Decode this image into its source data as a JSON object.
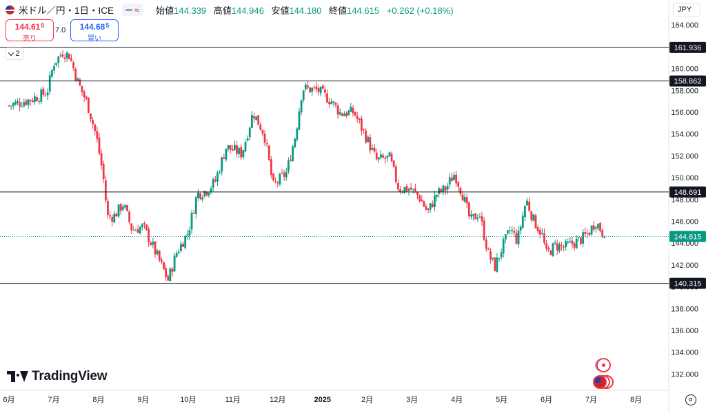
{
  "header": {
    "symbol": "米ドル／円・1日・ICE",
    "open_label": "始値",
    "open_value": "144.339",
    "high_label": "高値",
    "high_value": "144.946",
    "low_label": "安値",
    "low_value": "144.180",
    "close_label": "終値",
    "close_value": "144.615",
    "change": "+0.262 (+0.18%)",
    "pill_icon": "wave-icon"
  },
  "trade": {
    "sell_main": "144.61",
    "sell_sup": "5",
    "sell_label": "売り",
    "spread": "7.0",
    "buy_main": "144.68",
    "buy_sup": "5",
    "buy_label": "買い"
  },
  "indicator_collapse": "2",
  "currency": "JPY",
  "logo_text": "TradingView",
  "colors": {
    "up": "#089981",
    "down": "#f23645",
    "accent": "#2962ff",
    "price_line": "#089981"
  },
  "chart_data": {
    "type": "candlestick",
    "ylim": [
      131.0,
      166.0
    ],
    "y_ticks": [
      132,
      134,
      136,
      138,
      140,
      142,
      144,
      146,
      148,
      150,
      152,
      154,
      156,
      158,
      160,
      162,
      164
    ],
    "y_tick_labels": [
      "132.000",
      "134.000",
      "136.000",
      "138.000",
      "140.000",
      "142.000",
      "144.000",
      "146.000",
      "148.000",
      "150.000",
      "152.000",
      "154.000",
      "156.000",
      "158.000",
      "160.000",
      "162.000",
      "164.000"
    ],
    "x_labels": [
      "6月",
      "7月",
      "8月",
      "9月",
      "10月",
      "11月",
      "12月",
      "2025",
      "2月",
      "3月",
      "4月",
      "5月",
      "6月",
      "7月",
      "8月"
    ],
    "x_label_months": [
      0,
      1,
      2,
      3,
      4,
      5,
      6,
      7,
      8,
      9,
      10,
      11,
      12,
      13,
      14
    ],
    "x_month_range": [
      -0.2,
      14.7
    ],
    "horizontal_lines": [
      {
        "value": 161.936,
        "label": "161.936"
      },
      {
        "value": 158.862,
        "label": "158.862"
      },
      {
        "value": 148.691,
        "label": "148.691"
      },
      {
        "value": 140.315,
        "label": "140.315"
      }
    ],
    "last_price": {
      "value": 144.615,
      "label": "144.615"
    },
    "closes": [
      [
        0.0,
        156.6
      ],
      [
        0.5,
        157.2
      ],
      [
        0.85,
        157.8
      ],
      [
        1.0,
        160.5
      ],
      [
        1.2,
        161.5
      ],
      [
        1.35,
        161.2
      ],
      [
        1.55,
        158.6
      ],
      [
        1.75,
        156.8
      ],
      [
        1.95,
        153.8
      ],
      [
        2.1,
        150.3
      ],
      [
        2.2,
        146.4
      ],
      [
        2.35,
        146.5
      ],
      [
        2.55,
        147.6
      ],
      [
        2.75,
        145.2
      ],
      [
        3.0,
        145.5
      ],
      [
        3.2,
        143.8
      ],
      [
        3.4,
        142.0
      ],
      [
        3.55,
        140.6
      ],
      [
        3.75,
        143.2
      ],
      [
        4.0,
        145.0
      ],
      [
        4.2,
        148.5
      ],
      [
        4.4,
        148.8
      ],
      [
        4.6,
        149.6
      ],
      [
        4.85,
        152.8
      ],
      [
        5.2,
        152.2
      ],
      [
        5.45,
        156.0
      ],
      [
        5.7,
        154.0
      ],
      [
        5.9,
        149.2
      ],
      [
        6.2,
        150.5
      ],
      [
        6.4,
        154.0
      ],
      [
        6.55,
        158.2
      ],
      [
        6.9,
        158.0
      ],
      [
        7.2,
        157.0
      ],
      [
        7.4,
        155.9
      ],
      [
        7.7,
        156.0
      ],
      [
        8.0,
        153.5
      ],
      [
        8.2,
        151.6
      ],
      [
        8.5,
        151.8
      ],
      [
        8.7,
        149.0
      ],
      [
        8.95,
        149.0
      ],
      [
        9.15,
        148.3
      ],
      [
        9.35,
        146.8
      ],
      [
        9.55,
        148.5
      ],
      [
        9.75,
        149.0
      ],
      [
        9.95,
        150.4
      ],
      [
        10.15,
        148.2
      ],
      [
        10.3,
        146.0
      ],
      [
        10.5,
        146.8
      ],
      [
        10.7,
        143.0
      ],
      [
        10.85,
        141.8
      ],
      [
        11.0,
        143.5
      ],
      [
        11.2,
        145.3
      ],
      [
        11.35,
        144.2
      ],
      [
        11.55,
        148.0
      ],
      [
        11.7,
        146.2
      ],
      [
        11.9,
        144.8
      ],
      [
        12.0,
        143.0
      ],
      [
        12.2,
        143.8
      ],
      [
        12.4,
        143.6
      ],
      [
        12.6,
        144.0
      ],
      [
        12.8,
        144.4
      ],
      [
        12.95,
        145.0
      ],
      [
        13.1,
        146.0
      ],
      [
        13.3,
        144.615
      ]
    ]
  }
}
